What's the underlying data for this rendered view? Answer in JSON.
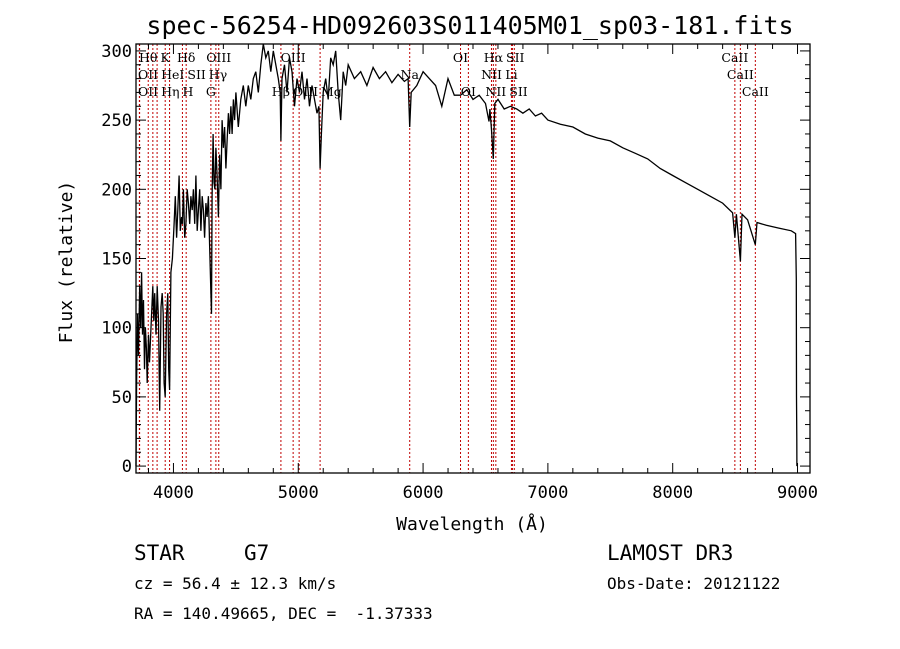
{
  "chart_data": {
    "type": "line",
    "title": "spec-56254-HD092603S011405M01_sp03-181.fits",
    "xlabel": "Wavelength (Å)",
    "ylabel": "Flux (relative)",
    "xlim": [
      3700,
      9100
    ],
    "ylim": [
      -5,
      305
    ],
    "x_ticks": [
      4000,
      5000,
      6000,
      7000,
      8000,
      9000
    ],
    "x_tick_labels": [
      "4000",
      "5000",
      "6000",
      "7000",
      "8000",
      "9000"
    ],
    "y_ticks": [
      0,
      50,
      100,
      150,
      200,
      250,
      300
    ],
    "y_tick_labels": [
      "0",
      "50",
      "100",
      "150",
      "200",
      "250",
      "300"
    ],
    "grid": false,
    "line_color": "#000000",
    "marker_color": "#c00000",
    "spectrum": [
      [
        3700,
        0
      ],
      [
        3705,
        60
      ],
      [
        3712,
        110
      ],
      [
        3720,
        80
      ],
      [
        3730,
        130
      ],
      [
        3738,
        100
      ],
      [
        3745,
        140
      ],
      [
        3752,
        95
      ],
      [
        3760,
        120
      ],
      [
        3768,
        70
      ],
      [
        3775,
        100
      ],
      [
        3783,
        85
      ],
      [
        3790,
        60
      ],
      [
        3800,
        95
      ],
      [
        3808,
        75
      ],
      [
        3815,
        90
      ],
      [
        3825,
        110
      ],
      [
        3835,
        130
      ],
      [
        3843,
        105
      ],
      [
        3850,
        125
      ],
      [
        3860,
        95
      ],
      [
        3870,
        130
      ],
      [
        3880,
        105
      ],
      [
        3890,
        40
      ],
      [
        3900,
        115
      ],
      [
        3910,
        125
      ],
      [
        3918,
        110
      ],
      [
        3925,
        60
      ],
      [
        3934,
        50
      ],
      [
        3945,
        110
      ],
      [
        3955,
        125
      ],
      [
        3962,
        70
      ],
      [
        3969,
        55
      ],
      [
        3980,
        140
      ],
      [
        3992,
        150
      ],
      [
        4005,
        175
      ],
      [
        4015,
        195
      ],
      [
        4025,
        165
      ],
      [
        4035,
        185
      ],
      [
        4045,
        210
      ],
      [
        4055,
        170
      ],
      [
        4065,
        180
      ],
      [
        4072,
        175
      ],
      [
        4080,
        200
      ],
      [
        4090,
        165
      ],
      [
        4100,
        175
      ],
      [
        4110,
        200
      ],
      [
        4120,
        190
      ],
      [
        4130,
        175
      ],
      [
        4140,
        195
      ],
      [
        4150,
        185
      ],
      [
        4160,
        200
      ],
      [
        4170,
        175
      ],
      [
        4180,
        210
      ],
      [
        4190,
        170
      ],
      [
        4200,
        185
      ],
      [
        4210,
        200
      ],
      [
        4220,
        170
      ],
      [
        4230,
        195
      ],
      [
        4240,
        185
      ],
      [
        4250,
        165
      ],
      [
        4260,
        190
      ],
      [
        4270,
        180
      ],
      [
        4280,
        195
      ],
      [
        4290,
        160
      ],
      [
        4300,
        125
      ],
      [
        4305,
        110
      ],
      [
        4310,
        195
      ],
      [
        4318,
        240
      ],
      [
        4325,
        205
      ],
      [
        4332,
        200
      ],
      [
        4340,
        230
      ],
      [
        4350,
        210
      ],
      [
        4360,
        180
      ],
      [
        4370,
        225
      ],
      [
        4380,
        200
      ],
      [
        4390,
        250
      ],
      [
        4400,
        230
      ],
      [
        4410,
        245
      ],
      [
        4420,
        215
      ],
      [
        4430,
        235
      ],
      [
        4440,
        255
      ],
      [
        4450,
        240
      ],
      [
        4460,
        260
      ],
      [
        4470,
        240
      ],
      [
        4480,
        265
      ],
      [
        4490,
        250
      ],
      [
        4500,
        270
      ],
      [
        4520,
        245
      ],
      [
        4540,
        265
      ],
      [
        4560,
        275
      ],
      [
        4580,
        260
      ],
      [
        4600,
        275
      ],
      [
        4620,
        265
      ],
      [
        4640,
        280
      ],
      [
        4660,
        285
      ],
      [
        4680,
        270
      ],
      [
        4700,
        290
      ],
      [
        4720,
        305
      ],
      [
        4740,
        295
      ],
      [
        4760,
        300
      ],
      [
        4780,
        285
      ],
      [
        4800,
        300
      ],
      [
        4820,
        290
      ],
      [
        4840,
        280
      ],
      [
        4855,
        270
      ],
      [
        4861,
        235
      ],
      [
        4870,
        280
      ],
      [
        4890,
        290
      ],
      [
        4910,
        270
      ],
      [
        4930,
        295
      ],
      [
        4950,
        285
      ],
      [
        4970,
        260
      ],
      [
        4990,
        280
      ],
      [
        5010,
        270
      ],
      [
        5030,
        285
      ],
      [
        5050,
        265
      ],
      [
        5070,
        280
      ],
      [
        5090,
        260
      ],
      [
        5110,
        275
      ],
      [
        5130,
        265
      ],
      [
        5150,
        255
      ],
      [
        5165,
        260
      ],
      [
        5175,
        215
      ],
      [
        5185,
        240
      ],
      [
        5200,
        270
      ],
      [
        5220,
        280
      ],
      [
        5240,
        265
      ],
      [
        5260,
        295
      ],
      [
        5280,
        290
      ],
      [
        5300,
        300
      ],
      [
        5320,
        270
      ],
      [
        5340,
        250
      ],
      [
        5360,
        285
      ],
      [
        5380,
        275
      ],
      [
        5400,
        290
      ],
      [
        5450,
        280
      ],
      [
        5500,
        285
      ],
      [
        5550,
        275
      ],
      [
        5600,
        288
      ],
      [
        5650,
        280
      ],
      [
        5700,
        285
      ],
      [
        5750,
        277
      ],
      [
        5800,
        283
      ],
      [
        5850,
        278
      ],
      [
        5880,
        280
      ],
      [
        5893,
        245
      ],
      [
        5905,
        270
      ],
      [
        5950,
        275
      ],
      [
        6000,
        285
      ],
      [
        6050,
        280
      ],
      [
        6100,
        275
      ],
      [
        6150,
        260
      ],
      [
        6200,
        280
      ],
      [
        6250,
        268
      ],
      [
        6300,
        268
      ],
      [
        6350,
        272
      ],
      [
        6400,
        265
      ],
      [
        6450,
        268
      ],
      [
        6500,
        262
      ],
      [
        6528,
        249
      ],
      [
        6535,
        258
      ],
      [
        6548,
        243
      ],
      [
        6563,
        222
      ],
      [
        6575,
        262
      ],
      [
        6600,
        265
      ],
      [
        6650,
        258
      ],
      [
        6700,
        260
      ],
      [
        6750,
        258
      ],
      [
        6800,
        255
      ],
      [
        6850,
        258
      ],
      [
        6900,
        253
      ],
      [
        6950,
        255
      ],
      [
        7000,
        250
      ],
      [
        7100,
        247
      ],
      [
        7200,
        245
      ],
      [
        7300,
        240
      ],
      [
        7400,
        237
      ],
      [
        7500,
        235
      ],
      [
        7600,
        230
      ],
      [
        7700,
        226
      ],
      [
        7800,
        222
      ],
      [
        7900,
        215
      ],
      [
        8000,
        210
      ],
      [
        8100,
        205
      ],
      [
        8200,
        200
      ],
      [
        8300,
        195
      ],
      [
        8400,
        190
      ],
      [
        8480,
        183
      ],
      [
        8498,
        165
      ],
      [
        8510,
        182
      ],
      [
        8542,
        148
      ],
      [
        8555,
        182
      ],
      [
        8600,
        178
      ],
      [
        8662,
        160
      ],
      [
        8675,
        176
      ],
      [
        8750,
        174
      ],
      [
        8850,
        172
      ],
      [
        8950,
        170
      ],
      [
        8985,
        168
      ],
      [
        8990,
        135
      ],
      [
        8992,
        50
      ],
      [
        8994,
        20
      ],
      [
        8995,
        0
      ]
    ],
    "line_markers": [
      {
        "label": "Hθ",
        "wavelength": 3798,
        "row": 0
      },
      {
        "label": "K",
        "wavelength": 3934,
        "row": 0
      },
      {
        "label": "Hδ",
        "wavelength": 4102,
        "row": 0
      },
      {
        "label": "OIII",
        "wavelength": 4363,
        "row": 0
      },
      {
        "label": "OIII",
        "wavelength": 4959,
        "row": 0
      },
      {
        "label": "OI",
        "wavelength": 6300,
        "row": 0
      },
      {
        "label": "Hα",
        "wavelength": 6563,
        "row": 0
      },
      {
        "label": "SII",
        "wavelength": 6716,
        "row": 0
      },
      {
        "label": "CaII",
        "wavelength": 8498,
        "row": 0
      },
      {
        "label": "OII",
        "wavelength": 3727,
        "row": 1
      },
      {
        "label": "HeI",
        "wavelength": 3869,
        "row": 1
      },
      {
        "label": "SII",
        "wavelength": 4072,
        "row": 1
      },
      {
        "label": "Hγ",
        "wavelength": 4340,
        "row": 1
      },
      {
        "label": "Na",
        "wavelength": 5893,
        "row": 1
      },
      {
        "label": "NII",
        "wavelength": 6548,
        "row": 1
      },
      {
        "label": "Li",
        "wavelength": 6708,
        "row": 1
      },
      {
        "label": "CaII",
        "wavelength": 8542,
        "row": 1
      },
      {
        "label": "OII",
        "wavelength": 3729,
        "row": 2
      },
      {
        "label": "Hη",
        "wavelength": 3835,
        "row": 2
      },
      {
        "label": "H",
        "wavelength": 3969,
        "row": 2
      },
      {
        "label": "G",
        "wavelength": 4300,
        "row": 2
      },
      {
        "label": "Hβ",
        "wavelength": 4861,
        "row": 2
      },
      {
        "label": "OIII",
        "wavelength": 5007,
        "row": 2
      },
      {
        "label": "Mg",
        "wavelength": 5175,
        "row": 2
      },
      {
        "label": "OI",
        "wavelength": 6363,
        "row": 2
      },
      {
        "label": "NII",
        "wavelength": 6583,
        "row": 2
      },
      {
        "label": "SII",
        "wavelength": 6731,
        "row": 2
      },
      {
        "label": "CaII",
        "wavelength": 8662,
        "row": 2
      }
    ]
  },
  "info": {
    "object_type": "STAR",
    "subclass": "G7",
    "survey": "LAMOST DR3",
    "redshift": "cz = 56.4 ± 12.3 km/s",
    "obs_date": "Obs-Date: 20121122",
    "coords": "RA = 140.49665, DEC =  -1.37333"
  }
}
